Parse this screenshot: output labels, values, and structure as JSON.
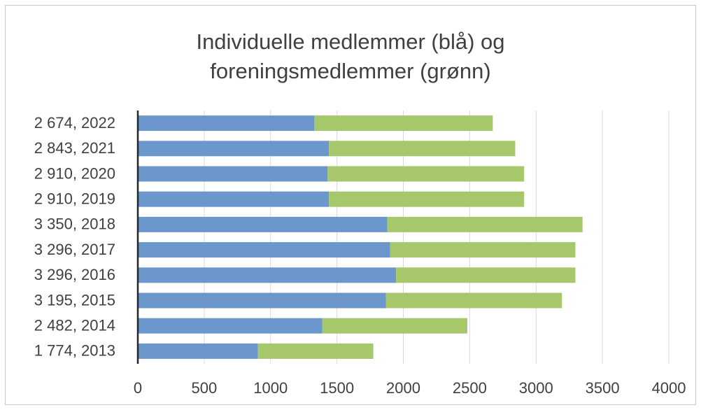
{
  "chart_data": {
    "type": "stacked-hbar",
    "title": [
      "Individuelle medlemmer (blå) og",
      "foreningsmedlemmer (grønn)"
    ],
    "categories": [
      "2 674, 2022",
      "2 843, 2021",
      "2 910, 2020",
      "2 910, 2019",
      "3 350, 2018",
      "3 296, 2017",
      "3 296, 2016",
      "3 195, 2015",
      "2 482, 2014",
      "1 774, 2013"
    ],
    "series": [
      {
        "color": "#6b97cd",
        "values": [
          1330,
          1440,
          1430,
          1440,
          1880,
          1900,
          1945,
          1870,
          1390,
          905
        ]
      },
      {
        "color": "#a6c86b",
        "values": [
          1344,
          1403,
          1480,
          1470,
          1470,
          1396,
          1351,
          1325,
          1092,
          869
        ]
      }
    ],
    "xlim": [
      0,
      4000
    ],
    "xticks": [
      0,
      500,
      1000,
      1500,
      2000,
      2500,
      3000,
      3500,
      4000
    ],
    "grid": true
  }
}
